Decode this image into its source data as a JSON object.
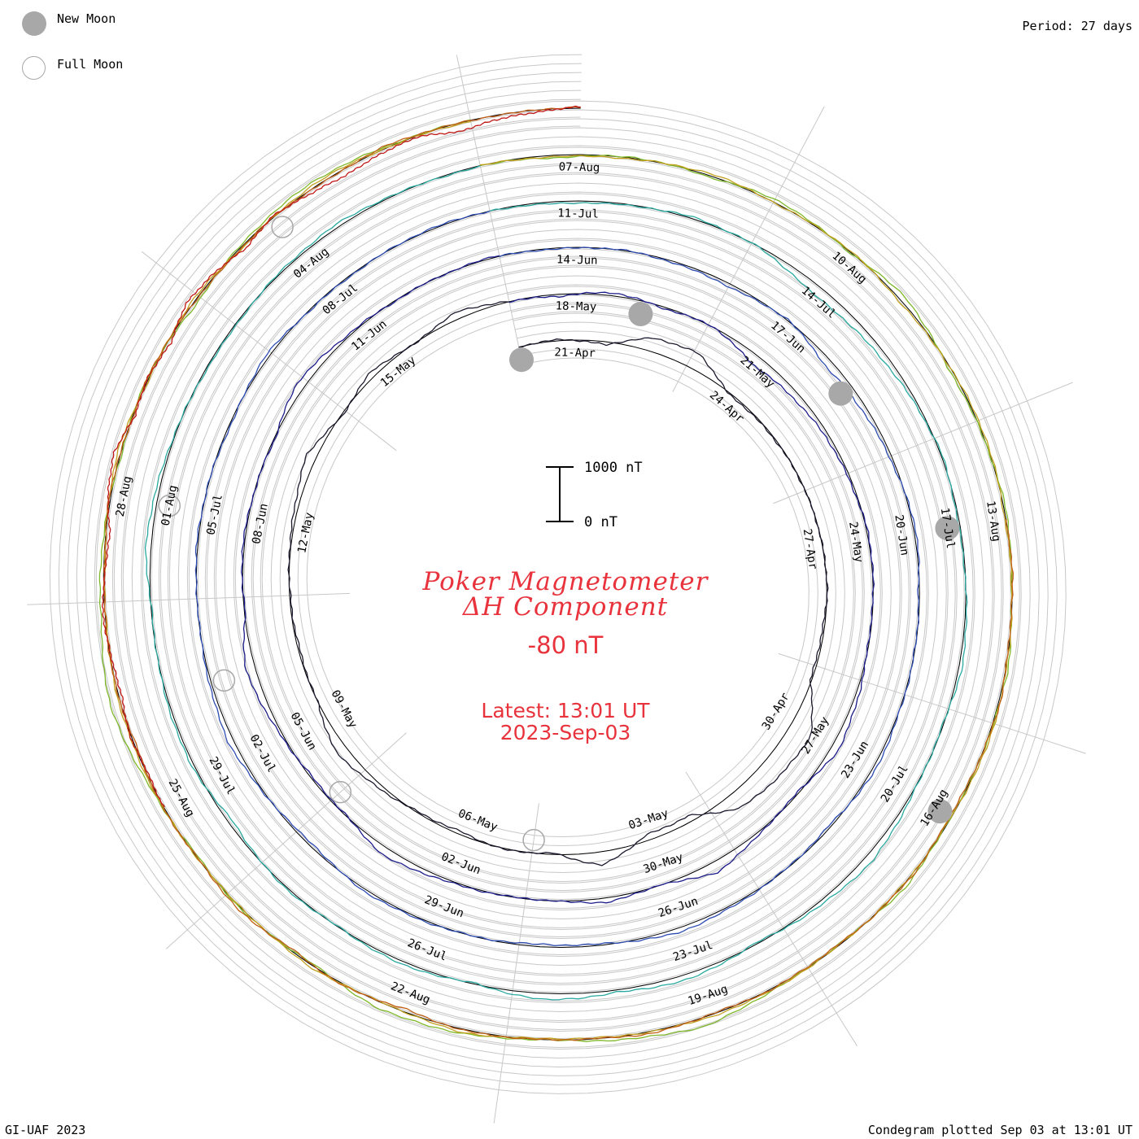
{
  "header": {
    "period": "Period: 27 days"
  },
  "legend": [
    {
      "label": "New Moon",
      "symbol": "filled-gray-circle",
      "color": "#a8a8a8"
    },
    {
      "label": "Full Moon",
      "symbol": "open-gray-circle",
      "color": "#a8a8a8"
    }
  ],
  "title": {
    "line1": "Poker Magnetometer",
    "line2": "ΔH Component",
    "value": "-80 nT",
    "latest_label": "Latest: 13:01 UT",
    "latest_date": "2023-Sep-03"
  },
  "footer": {
    "left": "GI-UAF 2023",
    "right": "Condegram plotted Sep 03 at 13:01 UT"
  },
  "chart_data": {
    "type": "line",
    "subtype": "spiral condegram",
    "period_days": 27,
    "scale_bar": {
      "top_label": "1000 nT",
      "bottom_label": "0 nT",
      "value_nT": 1000
    },
    "date_range": [
      "2023-04-20",
      "2023-09-03"
    ],
    "date_labels": [
      "21-Apr",
      "24-Apr",
      "27-Apr",
      "30-Apr",
      "03-May",
      "06-May",
      "09-May",
      "12-May",
      "15-May",
      "18-May",
      "21-May",
      "24-May",
      "27-May",
      "30-May",
      "02-Jun",
      "05-Jun",
      "08-Jun",
      "11-Jun",
      "14-Jun",
      "17-Jun",
      "20-Jun",
      "23-Jun",
      "26-Jun",
      "29-Jun",
      "02-Jul",
      "05-Jul",
      "08-Jul",
      "11-Jul",
      "14-Jul",
      "17-Jul",
      "20-Jul",
      "23-Jul",
      "26-Jul",
      "29-Jul",
      "01-Aug",
      "04-Aug",
      "07-Aug",
      "10-Aug",
      "13-Aug",
      "16-Aug",
      "19-Aug",
      "22-Aug",
      "25-Aug",
      "28-Aug"
    ],
    "new_moons": [
      "2023-04-20",
      "2023-05-19",
      "2023-06-18",
      "2023-07-17",
      "2023-08-16"
    ],
    "full_moons": [
      "2023-05-05",
      "2023-06-04",
      "2023-07-03",
      "2023-08-01",
      "2023-08-31"
    ],
    "series": [
      {
        "color": "#1a1a2e",
        "start": "2023-04-20",
        "values": [
          0,
          -20,
          60,
          -250,
          -300,
          30,
          20,
          10,
          5,
          0,
          -10,
          40,
          30,
          -420,
          -380,
          -300,
          120,
          110,
          -250,
          30,
          -20,
          60,
          20,
          -80,
          -200,
          0,
          30,
          20,
          -10,
          -60,
          -180,
          40,
          -100,
          20,
          -130,
          0
        ]
      },
      {
        "color": "#1c1c8a",
        "start": "2023-05-17",
        "values": [
          0,
          40,
          -60,
          30,
          -10,
          180,
          120,
          60,
          30,
          -20,
          0,
          20,
          -60,
          -140,
          40,
          -30,
          -200,
          20,
          -80,
          10,
          0,
          -40,
          -150,
          20,
          30,
          -60,
          -180,
          20,
          -30,
          0,
          20,
          -150,
          -40,
          10,
          0,
          -20
        ]
      },
      {
        "color": "#2c4bb0",
        "start": "2023-06-13",
        "values": [
          0,
          20,
          -10,
          30,
          60,
          -20,
          140,
          80,
          30,
          -40,
          20,
          0,
          -10,
          -60,
          40,
          10,
          -30,
          -80,
          20,
          50,
          10,
          -20,
          -40,
          60,
          0,
          -100,
          -30,
          10,
          -20,
          0,
          30,
          -60,
          20,
          10,
          -20,
          0
        ]
      },
      {
        "color": "#2aa9a0",
        "start": "2023-07-10",
        "values": [
          0,
          40,
          20,
          -30,
          10,
          180,
          130,
          60,
          -20,
          30,
          0,
          -60,
          20,
          -20,
          -140,
          -60,
          30,
          -100,
          -40,
          -120,
          20,
          -60,
          10,
          -30,
          80,
          -50,
          -20,
          20,
          -100,
          -40,
          10,
          30,
          -20,
          -60,
          0,
          20
        ]
      },
      {
        "color": "#7fb82a",
        "start": "2023-08-06",
        "values": [
          0,
          50,
          -20,
          30,
          -60,
          20,
          -100,
          40,
          10,
          -30,
          20,
          -40,
          0,
          20,
          -60,
          30,
          -20,
          -160,
          -60,
          10,
          -80,
          -120,
          40,
          -20,
          30,
          -60,
          -200,
          -80,
          -40,
          20,
          -30,
          60,
          -40,
          -100,
          -20,
          0
        ]
      },
      {
        "color": "#c2a020",
        "start": "2023-08-06",
        "values": [
          0,
          30,
          20,
          -40,
          10,
          -20,
          40,
          0,
          -30,
          20,
          10,
          -10,
          -40,
          20,
          0,
          10,
          -20,
          -30,
          10,
          30,
          -60,
          20,
          -40,
          10,
          0,
          -20,
          -30,
          20,
          10,
          -60,
          20,
          -40,
          30,
          -50,
          0,
          20
        ]
      },
      {
        "color": "#c06018",
        "start": "2023-08-13",
        "values": [
          0,
          -10,
          20,
          -30,
          10,
          40,
          -20,
          0,
          30,
          -10,
          20,
          -40,
          10,
          0,
          -20,
          60,
          -30,
          40,
          -60,
          10,
          -20,
          30,
          -10,
          0,
          20,
          -30,
          10,
          -20,
          0,
          30,
          -10,
          20,
          -40,
          0,
          10,
          -20
        ]
      },
      {
        "color": "#c01818",
        "start": "2023-08-25",
        "values": [
          0,
          30,
          -20,
          60,
          20,
          -40,
          20,
          80,
          -60,
          -120,
          40,
          -20,
          60,
          -100,
          -40,
          80,
          -30,
          60,
          120,
          60,
          20,
          160,
          80,
          40,
          -30
        ]
      }
    ]
  }
}
